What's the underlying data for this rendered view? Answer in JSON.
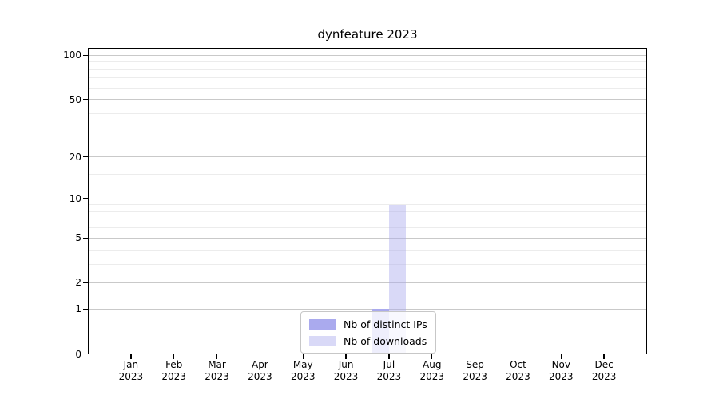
{
  "chart_data": {
    "type": "bar",
    "title": "dynfeature 2023",
    "categories": [
      "Jan",
      "Feb",
      "Mar",
      "Apr",
      "May",
      "Jun",
      "Jul",
      "Aug",
      "Sep",
      "Oct",
      "Nov",
      "Dec"
    ],
    "xtick_year": "2023",
    "series": [
      {
        "name": "Nb of distinct IPs",
        "color": "#aaaaee",
        "values": [
          0,
          0,
          0,
          0,
          0,
          0,
          1,
          0,
          0,
          0,
          0,
          0
        ]
      },
      {
        "name": "Nb of downloads",
        "color": "rgba(170,170,238,0.45)",
        "values": [
          0,
          0,
          0,
          0,
          0,
          0,
          9,
          0,
          0,
          0,
          0,
          0
        ]
      }
    ],
    "yscale": "log1p",
    "yticks": [
      0,
      1,
      2,
      5,
      10,
      20,
      50,
      100
    ],
    "y_minor_ticks": [
      3,
      4,
      6,
      7,
      8,
      9,
      15,
      30,
      40,
      60,
      70,
      80,
      90
    ],
    "ylim": [
      0,
      113
    ],
    "grid": "horizontal",
    "legend_position": "lower center",
    "colors": {
      "grid_major": "#c9c9c9",
      "grid_minor": "#ececec",
      "spine": "#000000",
      "background": "#ffffff"
    }
  }
}
